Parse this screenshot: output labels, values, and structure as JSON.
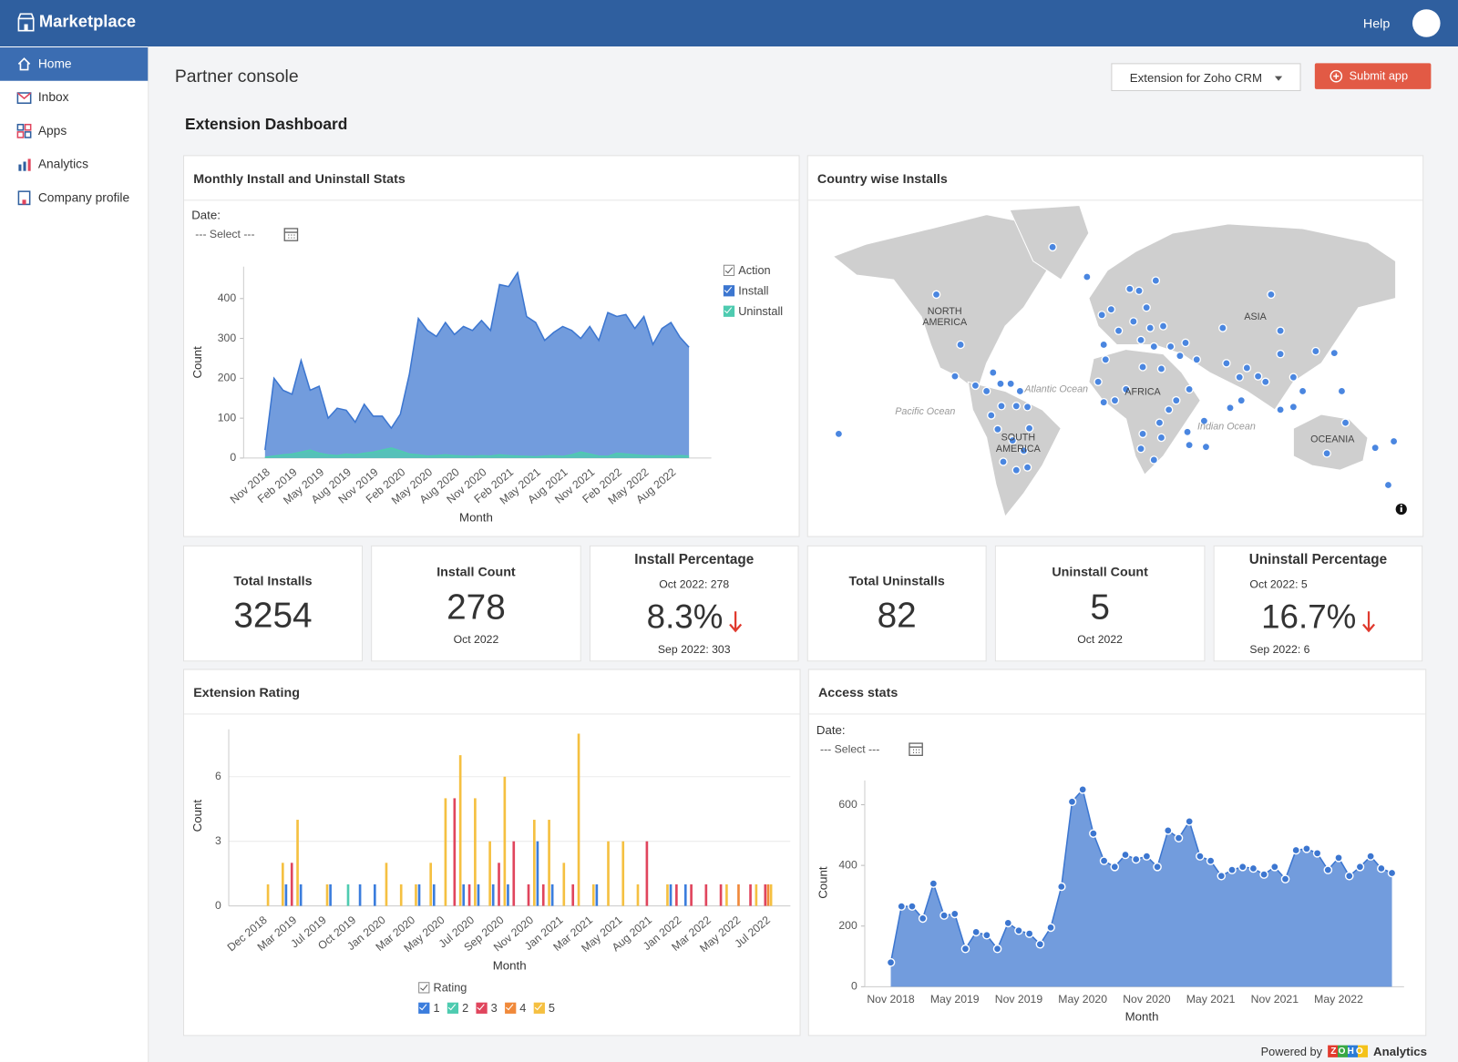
{
  "header": {
    "brand": "Marketplace",
    "help": "Help"
  },
  "nav": [
    "Home",
    "Inbox",
    "Apps",
    "Analytics",
    "Company profile"
  ],
  "page": {
    "title": "Partner console",
    "product": "Extension for Zoho CRM",
    "submit": "Submit app",
    "dashboard_title": "Extension Dashboard"
  },
  "map": {
    "title": "Country wise Installs",
    "labels": [
      "NORTH AMERICA",
      "ASIA",
      "AFRICA",
      "SOUTH AMERICA",
      "OCEANIA",
      "Pacific Ocean",
      "Atlantic Ocean",
      "Indian Ocean"
    ]
  },
  "kpis": [
    {
      "title": "Total Installs",
      "value": 3254
    },
    {
      "title": "Install Count",
      "value": 278,
      "period": "Oct 2022"
    },
    {
      "title": "Install Percentage",
      "current": "Oct 2022: 278",
      "value": "8.3%",
      "previous": "Sep 2022: 303"
    },
    {
      "title": "Total Uninstalls",
      "value": 82
    },
    {
      "title": "Uninstall Count",
      "value": 5,
      "period": "Oct 2022"
    },
    {
      "title": "Uninstall Percentage",
      "current": "Oct 2022: 5",
      "value": "16.7%",
      "previous": "Sep 2022: 6"
    }
  ],
  "footer": {
    "powered_by": "Powered by",
    "logo": "ZOHO",
    "product": "Analytics"
  },
  "chart_data": [
    {
      "type": "area",
      "title": "Monthly Install and Uninstall Stats",
      "date_label": "Date:",
      "date_placeholder": "--- Select ---",
      "x_label": "Month",
      "y_label": "Count",
      "legend_title": "Action",
      "rotate_labels": true,
      "grid": false,
      "markers": false,
      "categories": [
        "Nov 2018",
        null,
        null,
        "Feb 2019",
        null,
        null,
        "May 2019",
        null,
        null,
        "Aug 2019",
        null,
        null,
        "Nov 2019",
        null,
        null,
        "Feb 2020",
        null,
        null,
        "May 2020",
        null,
        null,
        "Aug 2020",
        null,
        null,
        "Nov 2020",
        null,
        null,
        "Feb 2021",
        null,
        null,
        "May 2021",
        null,
        null,
        "Aug 2021",
        null,
        null,
        "Nov 2021",
        null,
        null,
        "Feb 2022",
        null,
        null,
        "May 2022",
        null,
        null,
        "Aug 2022",
        null,
        null
      ],
      "series": [
        {
          "name": "Install",
          "color": "#3c76d0",
          "values": [
            20,
            200,
            170,
            160,
            245,
            170,
            180,
            100,
            125,
            120,
            90,
            135,
            105,
            105,
            75,
            110,
            210,
            350,
            320,
            305,
            340,
            310,
            330,
            320,
            345,
            320,
            435,
            430,
            465,
            355,
            340,
            295,
            315,
            330,
            320,
            300,
            330,
            295,
            365,
            355,
            360,
            325,
            355,
            285,
            325,
            340,
            303,
            278
          ]
        },
        {
          "name": "Uninstall",
          "color": "#4ecbb0",
          "values": [
            2,
            5,
            8,
            10,
            15,
            20,
            12,
            8,
            6,
            10,
            8,
            12,
            15,
            20,
            25,
            18,
            10,
            8,
            5,
            6,
            8,
            6,
            5,
            4,
            6,
            5,
            8,
            6,
            5,
            4,
            3,
            5,
            6,
            4,
            8,
            15,
            10,
            5,
            4,
            12,
            10,
            8,
            6,
            5,
            6,
            4,
            6,
            5
          ]
        }
      ],
      "ylim": [
        0,
        480
      ],
      "yticks": [
        0,
        100,
        200,
        300,
        400
      ]
    },
    {
      "type": "bar",
      "title": "Extension Rating",
      "x_label": "Month",
      "y_label": "Count",
      "legend_title": "Rating",
      "rotate_labels": true,
      "grid": true,
      "categories": [
        "Dec 2018",
        null,
        "Mar 2019",
        null,
        "Jul 2019",
        null,
        "Oct 2019",
        null,
        "Jan 2020",
        null,
        "Mar 2020",
        null,
        "May 2020",
        null,
        "Jul 2020",
        null,
        "Sep 2020",
        null,
        "Nov 2020",
        null,
        "Jan 2021",
        null,
        "Mar 2021",
        null,
        "May 2021",
        null,
        "Aug 2021",
        null,
        "Jan 2022",
        null,
        "Mar 2022",
        null,
        "May 2022",
        null,
        "Jul 2022"
      ],
      "series": [
        {
          "name": "1",
          "color": "#3b7ddd",
          "values": [
            0,
            0,
            1,
            1,
            0,
            1,
            0,
            1,
            1,
            0,
            0,
            1,
            1,
            0,
            1,
            1,
            1,
            1,
            0,
            3,
            1,
            0,
            0,
            1,
            0,
            0,
            0,
            0,
            1,
            1,
            0,
            0,
            0,
            0,
            0
          ]
        },
        {
          "name": "2",
          "color": "#4ecbb0",
          "values": [
            0,
            0,
            0,
            0,
            0,
            0,
            1,
            0,
            0,
            0,
            0,
            0,
            0,
            0,
            0,
            0,
            0,
            0,
            0,
            0,
            0,
            0,
            0,
            0,
            0,
            0,
            0,
            0,
            0,
            0,
            0,
            0,
            0,
            0,
            0
          ]
        },
        {
          "name": "3",
          "color": "#e0455d",
          "values": [
            0,
            0,
            2,
            0,
            0,
            0,
            0,
            0,
            0,
            0,
            0,
            0,
            0,
            5,
            1,
            0,
            2,
            3,
            1,
            1,
            0,
            1,
            0,
            0,
            0,
            0,
            3,
            0,
            1,
            1,
            1,
            1,
            0,
            1,
            1
          ]
        },
        {
          "name": "4",
          "color": "#f0893a",
          "values": [
            0,
            0,
            0,
            0,
            0,
            0,
            0,
            0,
            0,
            0,
            0,
            0,
            0,
            0,
            0,
            0,
            0,
            0,
            0,
            0,
            0,
            0,
            0,
            0,
            0,
            0,
            0,
            0,
            0,
            0,
            0,
            0,
            1,
            0,
            1
          ]
        },
        {
          "name": "5",
          "color": "#f5c041",
          "values": [
            1,
            2,
            4,
            0,
            1,
            0,
            0,
            0,
            2,
            1,
            1,
            2,
            5,
            7,
            5,
            3,
            6,
            0,
            4,
            4,
            2,
            8,
            1,
            3,
            3,
            1,
            0,
            1,
            0,
            0,
            0,
            1,
            0,
            1,
            1
          ]
        }
      ],
      "ylim": [
        0,
        8.2
      ],
      "yticks": [
        0,
        3,
        6
      ]
    },
    {
      "type": "area",
      "title": "Access stats",
      "date_label": "Date:",
      "date_placeholder": "--- Select ---",
      "x_label": "Month",
      "y_label": "Count",
      "rotate_labels": false,
      "grid": false,
      "markers": true,
      "categories": [
        "Nov 2018",
        null,
        null,
        null,
        null,
        null,
        "May 2019",
        null,
        null,
        null,
        null,
        null,
        "Nov 2019",
        null,
        null,
        null,
        null,
        null,
        "May 2020",
        null,
        null,
        null,
        null,
        null,
        "Nov 2020",
        null,
        null,
        null,
        null,
        null,
        "May 2021",
        null,
        null,
        null,
        null,
        null,
        "Nov 2021",
        null,
        null,
        null,
        null,
        null,
        "May 2022",
        null,
        null,
        null,
        null,
        null
      ],
      "series": [
        {
          "name": "Count",
          "color": "#3c76d0",
          "values": [
            80,
            265,
            265,
            225,
            340,
            235,
            240,
            125,
            180,
            170,
            125,
            210,
            185,
            175,
            140,
            195,
            330,
            610,
            650,
            505,
            415,
            395,
            435,
            420,
            430,
            395,
            515,
            490,
            545,
            430,
            415,
            365,
            385,
            395,
            390,
            370,
            395,
            355,
            450,
            455,
            440,
            385,
            425,
            365,
            395,
            430,
            390,
            375
          ]
        }
      ],
      "ylim": [
        0,
        680
      ],
      "yticks": [
        0,
        200,
        400,
        600
      ]
    }
  ]
}
